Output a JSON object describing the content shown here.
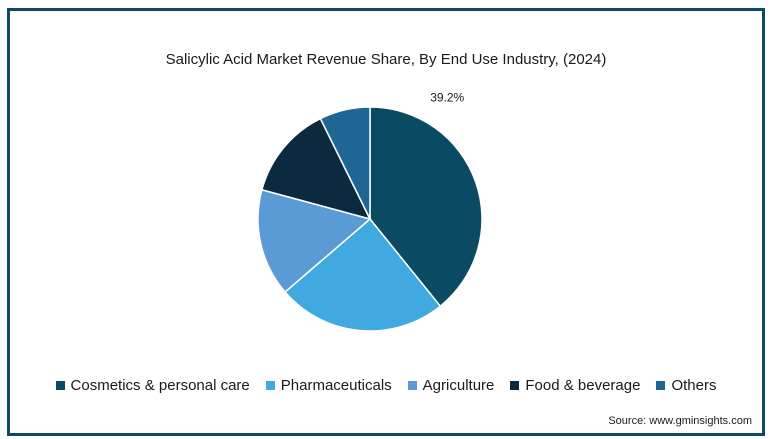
{
  "chart_data": {
    "type": "pie",
    "title": "Salicylic Acid Market Revenue Share, By End Use Industry, (2024)",
    "slices": [
      {
        "name": "Cosmetics & personal care",
        "value": 39.2,
        "label": "39.2%",
        "color": "#0b4a63"
      },
      {
        "name": "Pharmaceuticals",
        "value": 24.5,
        "label": "",
        "color": "#3fa9e0"
      },
      {
        "name": "Agriculture",
        "value": 15.5,
        "label": "",
        "color": "#5b9bd5"
      },
      {
        "name": "Food & beverage",
        "value": 13.5,
        "label": "",
        "color": "#0b2a3f"
      },
      {
        "name": "Others",
        "value": 7.3,
        "label": "",
        "color": "#1f6694"
      }
    ],
    "legend_position": "bottom"
  },
  "source": "Source: www.gminsights.com"
}
